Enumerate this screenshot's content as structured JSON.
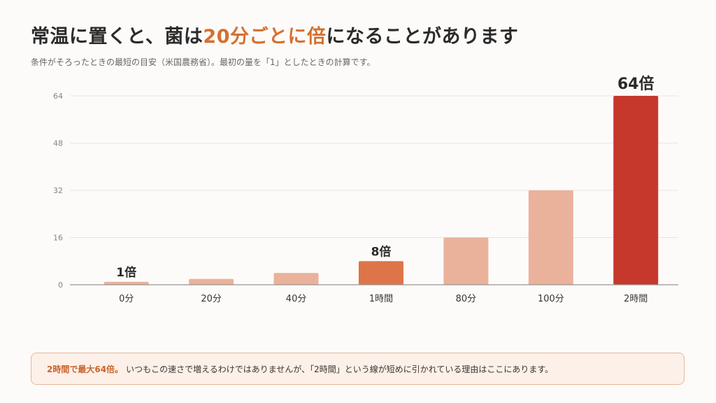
{
  "header": {
    "title_pre": "常温に置くと、菌は",
    "title_hl": "20分ごとに倍",
    "title_post": "になることがあります",
    "subtitle": "条件がそろったときの最短の目安（米国農務省）。最初の量を「1」としたときの計算です。"
  },
  "callout": {
    "lead": "2時間で最大64倍。",
    "text": "いつもこの速さで増えるわけではありませんが、「2時間」という線が短めに引かれている理由はここにあります。",
    "accent_color": "#c9632b"
  },
  "chart_data": {
    "type": "bar",
    "title": "",
    "xlabel": "",
    "ylabel": "",
    "categories": [
      "0分",
      "20分",
      "40分",
      "1時間",
      "80分",
      "100分",
      "2時間"
    ],
    "values": [
      1,
      2,
      4,
      8,
      16,
      32,
      64
    ],
    "ylim": [
      0,
      64
    ],
    "yticks": [
      0,
      16,
      32,
      48,
      64
    ],
    "grid": true,
    "colors": [
      "#eab29b",
      "#eab29b",
      "#eab29b",
      "#dd7549",
      "#eab29b",
      "#eab29b",
      "#c6372c"
    ],
    "data_labels": [
      {
        "index": 0,
        "text": "1倍"
      },
      {
        "index": 3,
        "text": "8倍"
      },
      {
        "index": 6,
        "text": "64倍"
      }
    ]
  }
}
